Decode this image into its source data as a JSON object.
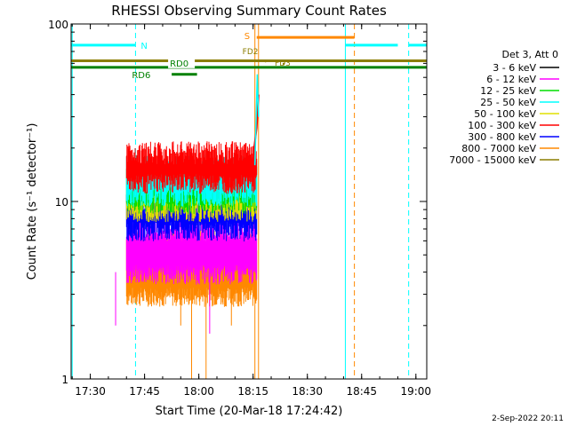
{
  "chart_data": {
    "type": "line",
    "title": "RHESSI Observing Summary Count Rates",
    "xlabel": "Start Time (20-Mar-18 17:24:42)",
    "ylabel": "Count Rate (s⁻¹ detector⁻¹)",
    "y_scale": "log",
    "ylim": [
      1,
      100
    ],
    "xlim": [
      "17:24:42",
      "19:03:00"
    ],
    "x_ticks": [
      "17:30",
      "17:45",
      "18:00",
      "18:15",
      "18:30",
      "18:45",
      "19:00"
    ],
    "y_ticks": [
      "1",
      "10",
      "100"
    ],
    "legend_title": "Det 3, Att 0",
    "legend_position": "right",
    "series": [
      {
        "name": "3 - 6 keV",
        "color": "#000000"
      },
      {
        "name": "6 - 12 keV",
        "color": "#ff00ff"
      },
      {
        "name": "12 - 25 keV",
        "color": "#00dd00"
      },
      {
        "name": "25 - 50 keV",
        "color": "#00ffff"
      },
      {
        "name": "50 - 100 keV",
        "color": "#e0e000"
      },
      {
        "name": "100 - 300 keV",
        "color": "#ff0000"
      },
      {
        "name": "300 - 800 keV",
        "color": "#0000ff"
      },
      {
        "name": "800 - 7000 keV",
        "color": "#ff8800"
      },
      {
        "name": "7000 - 15000 keV",
        "color": "#8b7d00"
      }
    ],
    "level_bands": [
      {
        "x": [
          "17:40:00",
          "18:16:00"
        ],
        "base": 3.0,
        "top": 6.0,
        "color": "#ff8800"
      },
      {
        "x": [
          "17:40:00",
          "18:16:00"
        ],
        "base": 4.0,
        "top": 7.0,
        "color": "#ff00ff"
      },
      {
        "x": [
          "17:40:00",
          "18:16:00"
        ],
        "base": 7.0,
        "top": 10.0,
        "color": "#0000ff"
      },
      {
        "x": [
          "17:40:00",
          "18:16:00"
        ],
        "base": 9.0,
        "top": 12.0,
        "color": "#e0e000"
      },
      {
        "x": [
          "17:40:00",
          "18:16:00"
        ],
        "base": 10.0,
        "top": 14.0,
        "color": "#00dd00"
      },
      {
        "x": [
          "17:40:00",
          "18:16:00"
        ],
        "base": 11.0,
        "top": 16.0,
        "color": "#00ffff"
      },
      {
        "x": [
          "17:40:00",
          "18:16:00"
        ],
        "base": 13.0,
        "top": 19.0,
        "color": "#ff0000"
      }
    ],
    "rise": {
      "color": "#ff0000",
      "points": [
        [
          "18:14:00",
          14
        ],
        [
          "18:15:00",
          18
        ],
        [
          "18:16:00",
          26
        ],
        [
          "18:16:30",
          40
        ]
      ]
    },
    "cyan_spike": {
      "color": "#00ffff",
      "points": [
        [
          "18:15:30",
          16
        ],
        [
          "18:16:10",
          52
        ],
        [
          "18:16:30",
          30
        ]
      ]
    },
    "status_bars": [
      {
        "label": "N",
        "color": "#00ffff",
        "y": 76,
        "segments": [
          [
            "17:24:42",
            "17:42:30"
          ],
          [
            "18:40:30",
            "18:55:00"
          ],
          [
            "18:58:00",
            "19:03:00"
          ]
        ]
      },
      {
        "label": "S",
        "color": "#ff8800",
        "y": 84,
        "segments": [
          [
            "18:16:00",
            "18:43:00"
          ]
        ]
      },
      {
        "label": "",
        "color": "#8b7d00",
        "y": 62,
        "segments": [
          [
            "17:24:42",
            "19:03:00"
          ]
        ]
      },
      {
        "label": "",
        "color": "#008000",
        "y": 57,
        "segments": [
          [
            "17:24:42",
            "19:03:00"
          ]
        ]
      },
      {
        "label": "RD0",
        "color": "#008000",
        "y": 57,
        "segments": []
      },
      {
        "label": "RD6",
        "color": "#008000",
        "y": 52,
        "segments": [
          [
            "17:52:30",
            "17:59:30"
          ]
        ]
      }
    ],
    "markers": [
      {
        "label": "FD2",
        "color": "#8b7d00",
        "x": "18:15:00",
        "y": 63
      },
      {
        "label": "FD3",
        "color": "#8b7d00",
        "x": "18:20:00",
        "y": 61
      }
    ],
    "vertical_lines": [
      {
        "x": "17:25:00",
        "color": "#00ffff",
        "style": "solid"
      },
      {
        "x": "17:42:30",
        "color": "#00ffff",
        "style": "dashed"
      },
      {
        "x": "18:15:30",
        "color": "#ff8800",
        "style": "solid"
      },
      {
        "x": "18:16:30",
        "color": "#ff8800",
        "style": "solid"
      },
      {
        "x": "18:40:30",
        "color": "#00ffff",
        "style": "solid"
      },
      {
        "x": "18:43:00",
        "color": "#ff8800",
        "style": "dashed"
      },
      {
        "x": "18:58:00",
        "color": "#00ffff",
        "style": "dashed"
      }
    ]
  },
  "footer": {
    "timestamp": "2-Sep-2022 20:11"
  }
}
